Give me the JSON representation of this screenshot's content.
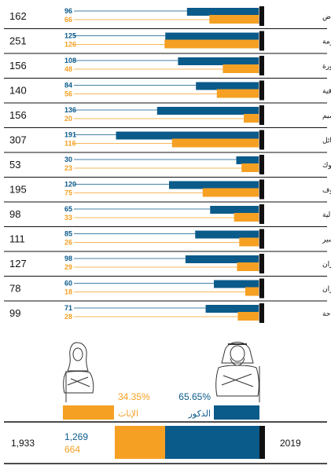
{
  "colors": {
    "male": "#0a5a8a",
    "female": "#f5a023",
    "black": "#111111",
    "gray": "#b3b3b3"
  },
  "summary": {
    "year": "2019",
    "total": "1,933",
    "male_count": "1,269",
    "female_count": "664",
    "male_pct": "65.65%",
    "female_pct": "34.35%",
    "male_label": "الذكور",
    "female_label": "الإناث"
  },
  "chart_data": {
    "type": "bar",
    "orientation": "horizontal",
    "categories": [
      "الرياض",
      "مكة المكرمة",
      "المدينة المنورة",
      "المنطقة الشرقية",
      "القصيم",
      "حائل",
      "تبوك",
      "الجوف",
      "الحدود الشمالية",
      "عسير",
      "جازان",
      "نجران",
      "الباحة"
    ],
    "totals": [
      162,
      251,
      156,
      140,
      156,
      307,
      53,
      195,
      98,
      111,
      127,
      78,
      99
    ],
    "series": [
      {
        "name": "الذكور",
        "values": [
          96,
          125,
          108,
          84,
          136,
          191,
          30,
          120,
          65,
          85,
          98,
          60,
          71
        ]
      },
      {
        "name": "الإناث",
        "values": [
          66,
          126,
          48,
          56,
          20,
          116,
          23,
          75,
          33,
          26,
          29,
          18,
          28
        ]
      }
    ],
    "xlim": [
      0,
      200
    ]
  }
}
